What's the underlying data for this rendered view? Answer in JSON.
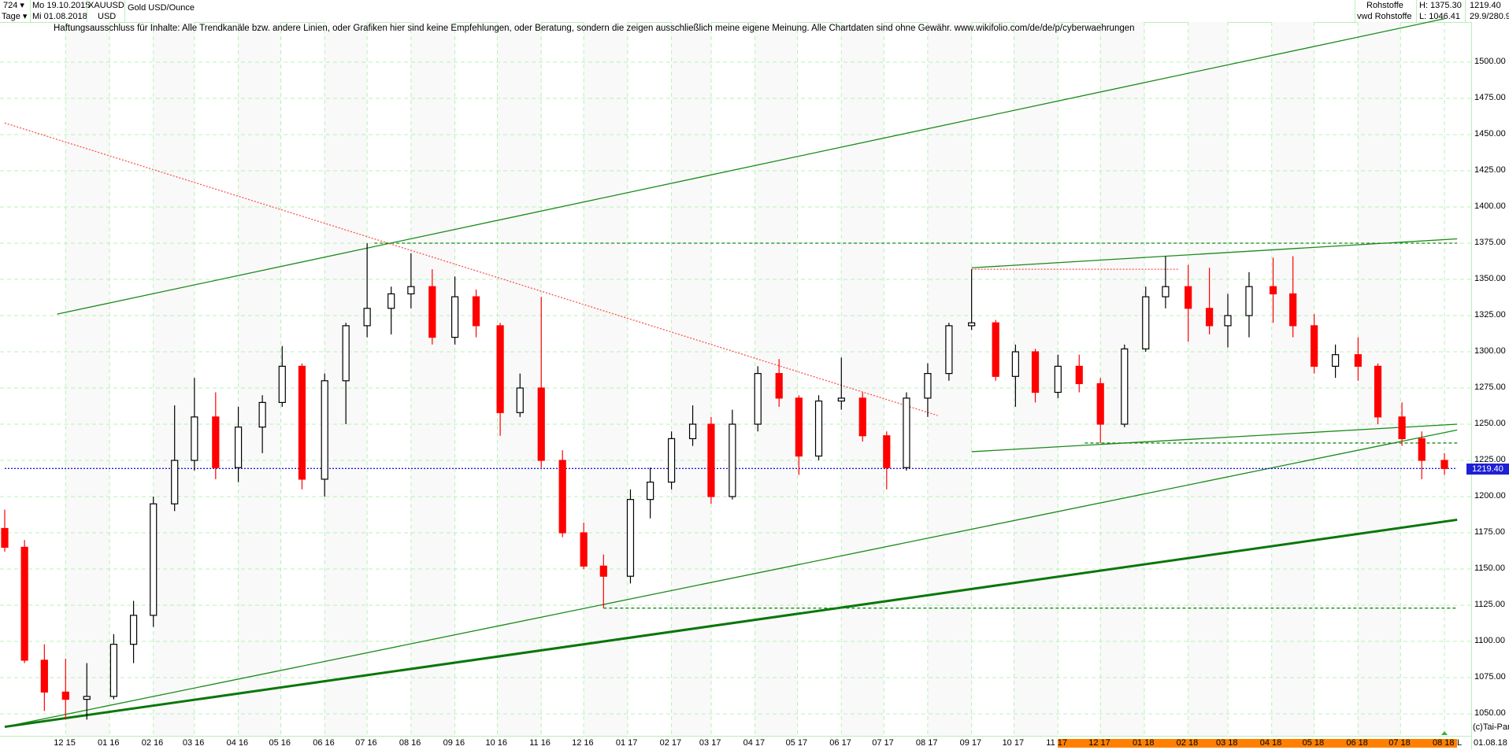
{
  "header": {
    "bars_count": "724",
    "period": "Tage",
    "date_from": "Mo 19.10.2015",
    "date_to": "Mi 01.08.2018",
    "symbol": "XAUUSD",
    "currency": "USD",
    "name": "Gold USD/Ounce",
    "group": "Rohstoffe",
    "source": "vwd Rohstoffe",
    "high": "H: 1375.30",
    "low": "L: 1046.41",
    "last": "1219.40",
    "ratio": "29.9/280.9"
  },
  "disclaimer": "Haftungsausschluss für Inhalte: Alle Trendkanäle bzw. andere Linien, oder Grafiken hier sind keine Empfehlungen, oder Beratung, sondern die zeigen ausschließlich meine eigene Meinung. Alle Chartdaten sind ohne Gewähr.  www.wikifolio.com/de/de/p/cyberwaehrungen",
  "footer": {
    "copyright": "(c)Tai-Pan",
    "scale_mode": "L",
    "end_date": "01.08.18"
  },
  "colors": {
    "up": "#000000",
    "down": "#ff0000",
    "grid": "#b8f0b8",
    "trend": "#1a8a1a",
    "trend_thick": "#0a760a",
    "resistance_red": "#ff5050",
    "last_price": "#1f1fd6",
    "timeline_band": "#ff8000"
  },
  "chart_data": {
    "type": "candlestick",
    "title": "Gold USD/Ounce",
    "xlim": [
      "2015-10-19",
      "2018-08-01"
    ],
    "ylim": [
      1050,
      1500
    ],
    "y_ticks": [
      1050,
      1075,
      1100,
      1125,
      1150,
      1175,
      1200,
      1225,
      1250,
      1275,
      1300,
      1325,
      1350,
      1375,
      1400,
      1425,
      1450,
      1475,
      1500
    ],
    "x_tick_labels": [
      "12 15",
      "01 16",
      "02 16",
      "03 16",
      "04 16",
      "05 16",
      "06 16",
      "07 16",
      "08 16",
      "09 16",
      "10 16",
      "11 16",
      "12 16",
      "01 17",
      "02 17",
      "03 17",
      "04 17",
      "05 17",
      "06 17",
      "07 17",
      "08 17",
      "09 17",
      "10 17",
      "11 17",
      "12 17",
      "01 18",
      "02 18",
      "03 18",
      "04 18",
      "05 18",
      "06 18",
      "07 18",
      "08 18"
    ],
    "grid": true,
    "last_price": 1219.4,
    "candles": [
      [
        "2015-10-19",
        1178,
        1191,
        1162,
        1165
      ],
      [
        "2015-11-02",
        1165,
        1170,
        1085,
        1087
      ],
      [
        "2015-11-16",
        1087,
        1098,
        1052,
        1065
      ],
      [
        "2015-12-01",
        1065,
        1088,
        1046,
        1060
      ],
      [
        "2015-12-16",
        1060,
        1085,
        1046,
        1062
      ],
      [
        "2016-01-04",
        1062,
        1105,
        1060,
        1098
      ],
      [
        "2016-01-18",
        1098,
        1128,
        1085,
        1118
      ],
      [
        "2016-02-01",
        1118,
        1200,
        1110,
        1195
      ],
      [
        "2016-02-16",
        1195,
        1263,
        1190,
        1225
      ],
      [
        "2016-03-01",
        1225,
        1282,
        1218,
        1255
      ],
      [
        "2016-03-16",
        1255,
        1272,
        1212,
        1220
      ],
      [
        "2016-04-01",
        1220,
        1262,
        1210,
        1248
      ],
      [
        "2016-04-18",
        1248,
        1270,
        1230,
        1265
      ],
      [
        "2016-05-02",
        1265,
        1304,
        1262,
        1290
      ],
      [
        "2016-05-16",
        1290,
        1292,
        1205,
        1212
      ],
      [
        "2016-06-01",
        1212,
        1285,
        1200,
        1280
      ],
      [
        "2016-06-16",
        1280,
        1320,
        1250,
        1318
      ],
      [
        "2016-07-01",
        1318,
        1375,
        1310,
        1330
      ],
      [
        "2016-07-18",
        1330,
        1345,
        1312,
        1340
      ],
      [
        "2016-08-01",
        1340,
        1368,
        1330,
        1345
      ],
      [
        "2016-08-16",
        1345,
        1357,
        1305,
        1310
      ],
      [
        "2016-09-01",
        1310,
        1352,
        1305,
        1338
      ],
      [
        "2016-09-16",
        1338,
        1343,
        1310,
        1318
      ],
      [
        "2016-10-03",
        1318,
        1320,
        1242,
        1258
      ],
      [
        "2016-10-17",
        1258,
        1285,
        1255,
        1275
      ],
      [
        "2016-11-01",
        1275,
        1338,
        1220,
        1225
      ],
      [
        "2016-11-16",
        1225,
        1232,
        1172,
        1175
      ],
      [
        "2016-12-01",
        1175,
        1182,
        1150,
        1152
      ],
      [
        "2016-12-15",
        1152,
        1160,
        1123,
        1145
      ],
      [
        "2017-01-03",
        1145,
        1205,
        1140,
        1198
      ],
      [
        "2017-01-17",
        1198,
        1220,
        1185,
        1210
      ],
      [
        "2017-02-01",
        1210,
        1245,
        1205,
        1240
      ],
      [
        "2017-02-16",
        1240,
        1263,
        1235,
        1250
      ],
      [
        "2017-03-01",
        1250,
        1255,
        1195,
        1200
      ],
      [
        "2017-03-16",
        1200,
        1260,
        1198,
        1250
      ],
      [
        "2017-04-03",
        1250,
        1290,
        1245,
        1285
      ],
      [
        "2017-04-18",
        1285,
        1295,
        1262,
        1268
      ],
      [
        "2017-05-02",
        1268,
        1270,
        1215,
        1228
      ],
      [
        "2017-05-16",
        1228,
        1270,
        1225,
        1266
      ],
      [
        "2017-06-01",
        1266,
        1296,
        1260,
        1268
      ],
      [
        "2017-06-16",
        1268,
        1272,
        1238,
        1242
      ],
      [
        "2017-07-03",
        1242,
        1245,
        1205,
        1220
      ],
      [
        "2017-07-17",
        1220,
        1272,
        1218,
        1268
      ],
      [
        "2017-08-01",
        1268,
        1292,
        1255,
        1285
      ],
      [
        "2017-08-16",
        1285,
        1320,
        1280,
        1318
      ],
      [
        "2017-09-01",
        1318,
        1357,
        1315,
        1320
      ],
      [
        "2017-09-18",
        1320,
        1322,
        1280,
        1283
      ],
      [
        "2017-10-02",
        1283,
        1305,
        1262,
        1300
      ],
      [
        "2017-10-16",
        1300,
        1302,
        1265,
        1272
      ],
      [
        "2017-11-01",
        1272,
        1298,
        1268,
        1290
      ],
      [
        "2017-11-16",
        1290,
        1298,
        1272,
        1278
      ],
      [
        "2017-12-01",
        1278,
        1282,
        1237,
        1250
      ],
      [
        "2017-12-18",
        1250,
        1305,
        1248,
        1302
      ],
      [
        "2018-01-02",
        1302,
        1345,
        1300,
        1338
      ],
      [
        "2018-01-16",
        1338,
        1366,
        1330,
        1345
      ],
      [
        "2018-02-01",
        1345,
        1360,
        1307,
        1330
      ],
      [
        "2018-02-16",
        1330,
        1358,
        1312,
        1318
      ],
      [
        "2018-03-01",
        1318,
        1340,
        1303,
        1325
      ],
      [
        "2018-03-16",
        1325,
        1355,
        1310,
        1345
      ],
      [
        "2018-04-02",
        1345,
        1365,
        1320,
        1340
      ],
      [
        "2018-04-16",
        1340,
        1366,
        1310,
        1318
      ],
      [
        "2018-05-01",
        1318,
        1326,
        1285,
        1290
      ],
      [
        "2018-05-16",
        1290,
        1305,
        1282,
        1298
      ],
      [
        "2018-06-01",
        1298,
        1310,
        1280,
        1290
      ],
      [
        "2018-06-15",
        1290,
        1292,
        1250,
        1255
      ],
      [
        "2018-07-02",
        1255,
        1265,
        1235,
        1240
      ],
      [
        "2018-07-16",
        1240,
        1245,
        1212,
        1225
      ],
      [
        "2018-08-01",
        1225,
        1230,
        1215,
        1219.4
      ]
    ],
    "trend_lines": [
      {
        "from": [
          "2015-11-25",
          1326
        ],
        "to": [
          "2018-08-01",
          1530
        ],
        "style": "solid",
        "color": "trend"
      },
      {
        "from": [
          "2015-10-19",
          1041
        ],
        "to": [
          "2018-08-10",
          1246
        ],
        "style": "solid",
        "color": "trend"
      },
      {
        "from": [
          "2015-10-19",
          1041
        ],
        "to": [
          "2018-08-10",
          1184
        ],
        "style": "thick",
        "color": "trend_thick"
      },
      {
        "from": [
          "2017-09-01",
          1358
        ],
        "to": [
          "2018-08-10",
          1378
        ],
        "style": "solid",
        "color": "trend"
      },
      {
        "from": [
          "2017-09-01",
          1231
        ],
        "to": [
          "2018-08-10",
          1250
        ],
        "style": "solid",
        "color": "trend"
      },
      {
        "from": [
          "2015-10-19",
          1458
        ],
        "to": [
          "2017-08-08",
          1256
        ],
        "style": "dotted",
        "color": "resistance_red"
      },
      {
        "from": [
          "2017-09-01",
          1357
        ],
        "to": [
          "2018-01-25",
          1357
        ],
        "style": "dotted",
        "color": "resistance_red"
      },
      {
        "from": [
          "2016-07-06",
          1375
        ],
        "to": [
          "2018-08-10",
          1375
        ],
        "style": "dashed",
        "color": "trend"
      },
      {
        "from": [
          "2017-11-20",
          1237
        ],
        "to": [
          "2018-08-10",
          1237
        ],
        "style": "dashed",
        "color": "trend"
      },
      {
        "from": [
          "2016-12-15",
          1123
        ],
        "to": [
          "2018-08-10",
          1123
        ],
        "style": "dashed",
        "color": "trend"
      },
      {
        "from": [
          "2015-10-19",
          1219.4
        ],
        "to": [
          "2018-08-10",
          1219.4
        ],
        "style": "dotted",
        "color": "last_price"
      }
    ]
  }
}
